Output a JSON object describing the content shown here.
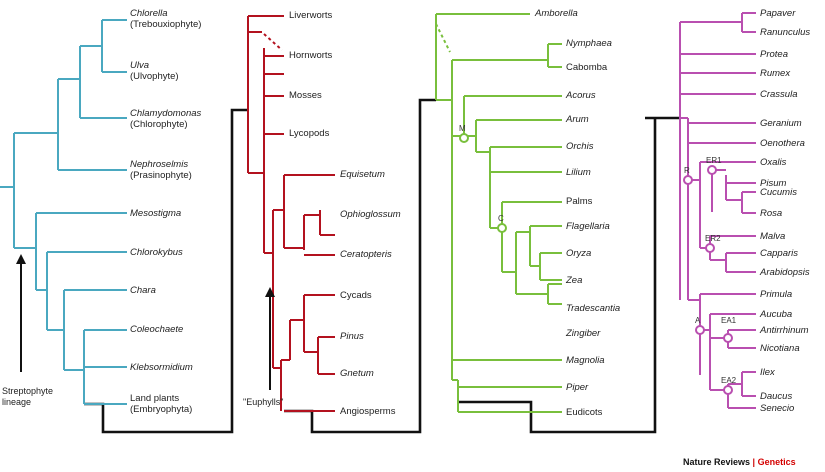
{
  "colors": {
    "cyan": "#4aa8c0",
    "red": "#b3121f",
    "green": "#79bf3c",
    "magenta": "#b94fb0",
    "black": "#111111"
  },
  "panel1": {
    "taxa": [
      {
        "name": "Chlorella",
        "sub": "(Trebouxiophyte)"
      },
      {
        "name": "Ulva",
        "sub": "(Ulvophyte)"
      },
      {
        "name": "Chlamydomonas",
        "sub": "(Chlorophyte)"
      },
      {
        "name": "Nephroselmis",
        "sub": "(Prasinophyte)"
      },
      {
        "name": "Mesostigma"
      },
      {
        "name": "Chlorokybus"
      },
      {
        "name": "Chara"
      },
      {
        "name": "Coleochaete"
      },
      {
        "name": "Klebsormidium"
      },
      {
        "name": "Land plants",
        "sub": "(Embryophyta)"
      }
    ],
    "arrow_label": "Streptophyte lineage"
  },
  "panel2": {
    "taxa": [
      "Liverworts",
      "Hornworts",
      "Mosses",
      "Lycopods",
      "Equisetum",
      "Ophioglossum",
      "Ceratopteris",
      "Cycads",
      "Pinus",
      "Gnetum",
      "Angiosperms"
    ],
    "arrow_label": "\"Euphylls\""
  },
  "panel3": {
    "taxa": [
      "Amborella",
      "Nymphaea",
      "Cabomba",
      "Acorus",
      "Arum",
      "Orchis",
      "Lilium",
      "Palms",
      "Flagellaria",
      "Oryza",
      "Zea",
      "Tradescantia",
      "Zingiber",
      "Magnolia",
      "Piper",
      "Eudicots"
    ],
    "nodes": [
      "M",
      "C"
    ]
  },
  "panel4": {
    "taxa": [
      "Papaver",
      "Ranunculus",
      "Protea",
      "Rumex",
      "Crassula",
      "Geranium",
      "Oenothera",
      "Oxalis",
      "Pisum",
      "Cucumis",
      "Rosa",
      "Malva",
      "Capparis",
      "Arabidopsis",
      "Primula",
      "Aucuba",
      "Antirrhinum",
      "Nicotiana",
      "Ilex",
      "Daucus",
      "Senecio"
    ],
    "nodes": [
      "R",
      "ER1",
      "ER2",
      "A",
      "EA1",
      "EA2"
    ]
  },
  "credit": {
    "publisher": "Nature Reviews",
    "separator": "|",
    "journal": "Genetics"
  }
}
